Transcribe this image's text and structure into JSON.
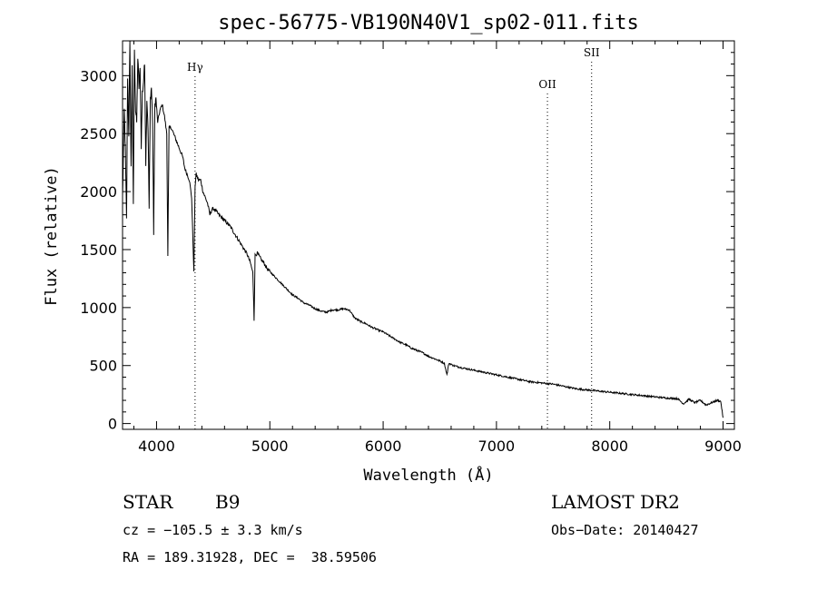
{
  "chart_data": {
    "type": "line",
    "title": "spec-56775-VB190N40V1_sp02-011.fits",
    "xlabel": "Wavelength (Å)",
    "ylabel": "Flux (relative)",
    "xlim": [
      3700,
      9100
    ],
    "ylim": [
      -50,
      3300
    ],
    "xticks": [
      "4000",
      "5000",
      "6000",
      "7000",
      "8000",
      "9000"
    ],
    "yticks": [
      "0",
      "500",
      "1000",
      "1500",
      "2000",
      "2500",
      "3000"
    ],
    "grid": false,
    "lines": [
      {
        "label": "Hγ",
        "x": 4340
      },
      {
        "label": "OII",
        "x": 7450
      },
      {
        "label": "SII",
        "x": 7840
      }
    ],
    "spectrum": {
      "x": [
        3700,
        3715,
        3725,
        3735,
        3745,
        3755,
        3765,
        3775,
        3785,
        3795,
        3805,
        3815,
        3825,
        3835,
        3845,
        3855,
        3865,
        3875,
        3885,
        3895,
        3905,
        3915,
        3925,
        3935,
        3945,
        3955,
        3965,
        3975,
        3985,
        3995,
        4010,
        4030,
        4050,
        4070,
        4090,
        4100,
        4110,
        4130,
        4150,
        4170,
        4190,
        4210,
        4230,
        4250,
        4270,
        4290,
        4310,
        4330,
        4340,
        4350,
        4370,
        4390,
        4410,
        4430,
        4450,
        4471,
        4490,
        4510,
        4550,
        4600,
        4650,
        4700,
        4750,
        4800,
        4830,
        4850,
        4861,
        4870,
        4890,
        4920,
        4950,
        4980,
        5020,
        5060,
        5100,
        5150,
        5200,
        5250,
        5300,
        5350,
        5400,
        5450,
        5500,
        5550,
        5600,
        5650,
        5700,
        5750,
        5800,
        5850,
        5900,
        5950,
        6000,
        6050,
        6100,
        6150,
        6200,
        6250,
        6300,
        6350,
        6400,
        6450,
        6500,
        6540,
        6563,
        6580,
        6620,
        6700,
        6800,
        6900,
        7000,
        7100,
        7200,
        7300,
        7400,
        7500,
        7600,
        7700,
        7800,
        7900,
        8000,
        8100,
        8200,
        8300,
        8400,
        8500,
        8600,
        8650,
        8700,
        8750,
        8800,
        8850,
        8900,
        8950,
        8980,
        9000
      ],
      "y": [
        1950,
        2700,
        2350,
        1750,
        3000,
        2500,
        3300,
        2200,
        3100,
        1900,
        3250,
        2700,
        2600,
        3150,
        2900,
        3050,
        2400,
        2850,
        2950,
        3100,
        2250,
        2800,
        2550,
        1850,
        2800,
        2900,
        2600,
        1650,
        2750,
        2800,
        2600,
        2700,
        2750,
        2650,
        2500,
        1450,
        2550,
        2550,
        2500,
        2450,
        2400,
        2350,
        2300,
        2200,
        2150,
        2100,
        1950,
        1300,
        2050,
        2150,
        2100,
        2100,
        2000,
        1950,
        1900,
        1800,
        1850,
        1850,
        1800,
        1750,
        1700,
        1620,
        1540,
        1460,
        1380,
        1300,
        900,
        1450,
        1470,
        1420,
        1380,
        1330,
        1290,
        1250,
        1210,
        1160,
        1110,
        1080,
        1040,
        1020,
        990,
        970,
        960,
        980,
        980,
        990,
        980,
        910,
        880,
        860,
        830,
        810,
        790,
        760,
        730,
        700,
        680,
        650,
        630,
        610,
        580,
        560,
        540,
        520,
        420,
        520,
        500,
        480,
        460,
        440,
        420,
        400,
        380,
        360,
        350,
        340,
        320,
        300,
        290,
        280,
        270,
        260,
        250,
        240,
        230,
        220,
        215,
        170,
        210,
        180,
        200,
        160,
        180,
        200,
        190,
        50
      ]
    }
  },
  "footer": {
    "type_label": "STAR",
    "subclass": "B9",
    "survey": "LAMOST DR2",
    "cz": "cz = −105.5 ± 3.3 km/s",
    "obs_date": "Obs−Date: 20140427",
    "coords": "RA = 189.31928, DEC =  38.59506"
  }
}
